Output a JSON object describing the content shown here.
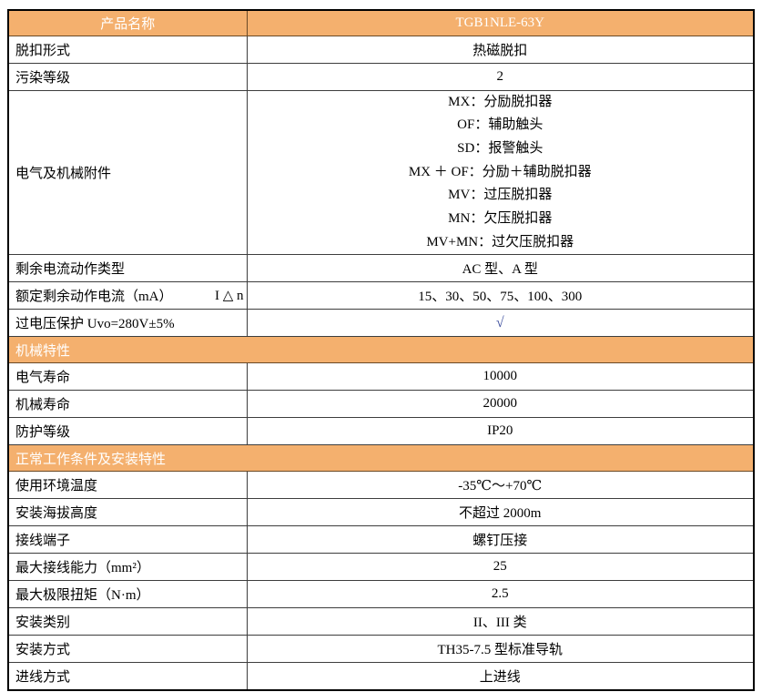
{
  "colors": {
    "header_bg": "#F4B06E",
    "header_text": "#FFFFFF",
    "border_outer": "#000000",
    "border_inner": "#3D3D3D",
    "check_mark": "#3E4F9E"
  },
  "table": {
    "header": {
      "label": "产品名称",
      "value": "TGB1NLE-63Y"
    },
    "rows": [
      {
        "label": "脱扣形式",
        "value": "热磁脱扣"
      },
      {
        "label": "污染等级",
        "value": "2"
      },
      {
        "label": "电气及机械附件",
        "lines": [
          "MX：分励脱扣器",
          "OF：辅助触头",
          "SD：报警触头",
          "MX ＋ OF：分励＋辅助脱扣器",
          "MV：过压脱扣器",
          "MN：欠压脱扣器",
          "MV+MN：过欠压脱扣器"
        ]
      },
      {
        "label": "剩余电流动作类型",
        "value": "AC 型、A 型"
      },
      {
        "label": "额定剩余动作电流（mA）",
        "label_right": "I △ n",
        "value": "15、30、50、75、100、300"
      },
      {
        "label": "过电压保护 Uvo=280V±5%",
        "value": "√"
      },
      {
        "section": "机械特性"
      },
      {
        "label": "电气寿命",
        "value": "10000"
      },
      {
        "label": "机械寿命",
        "value": "20000"
      },
      {
        "label": "防护等级",
        "value": "IP20"
      },
      {
        "section": "正常工作条件及安装特性"
      },
      {
        "label": "使用环境温度",
        "value": "-35℃～+70℃"
      },
      {
        "label": "安装海拔高度",
        "value": "不超过 2000m"
      },
      {
        "label": "接线端子",
        "value": "螺钉压接"
      },
      {
        "label": "最大接线能力（mm²）",
        "value": "25"
      },
      {
        "label": "最大极限扭矩（N·m）",
        "value": "2.5"
      },
      {
        "label": "安装类别",
        "value": "II、III 类"
      },
      {
        "label": "安装方式",
        "value": "TH35-7.5 型标准导轨"
      },
      {
        "label": "进线方式",
        "value": "上进线"
      }
    ]
  }
}
